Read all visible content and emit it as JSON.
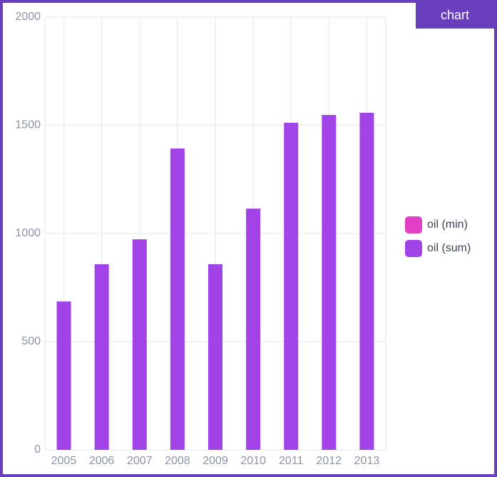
{
  "tab": "chart",
  "chart_data": {
    "type": "bar",
    "categories": [
      "2005",
      "2006",
      "2007",
      "2008",
      "2009",
      "2010",
      "2011",
      "2012",
      "2013"
    ],
    "series": [
      {
        "name": "oil (min)",
        "color": "#e040c4"
      },
      {
        "name": "oil (sum)",
        "color": "#a243e8",
        "values": [
          686,
          858,
          973,
          1393,
          858,
          1115,
          1512,
          1548,
          1558
        ]
      }
    ],
    "ylim": [
      0,
      2000
    ],
    "yticks": [
      0,
      500,
      1000,
      1500,
      2000
    ],
    "grid": true,
    "legend": "right"
  }
}
